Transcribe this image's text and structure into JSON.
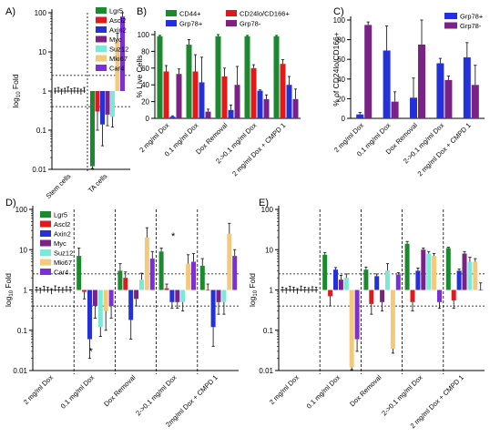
{
  "colors": {
    "Lgr5": "#1b8a2e",
    "Ascl2": "#e0191c",
    "Axin2": "#2430d8",
    "Myc": "#7b2287",
    "Suz12": "#7ce8d6",
    "Mki67": "#f5c97a",
    "Car4": "#7b2fd6",
    "CD44+": "#1b8a2e",
    "Grp78+": "#2430d8",
    "CD24lo/CD166+": "#e0191c",
    "Grp78-": "#7b2287"
  },
  "chart_data": [
    {
      "panel": "A)",
      "type": "bar",
      "scale": "log",
      "ylabel": "log10 Fold",
      "ylim": [
        0.01,
        100
      ],
      "yticks": [
        "0.01",
        "0.1",
        "1",
        "10",
        "100"
      ],
      "categories": [
        "Stem cells",
        "TA cells"
      ],
      "stem_points": [
        1.0,
        1.05,
        0.95,
        1.0,
        1.08,
        0.97,
        1.02,
        1.0,
        0.95,
        1.05
      ],
      "reference_lines": [
        2.5,
        0.4
      ],
      "series": [
        {
          "name": "Lgr5",
          "values": [
            null,
            0.012
          ],
          "err": [
            null,
            0.01
          ]
        },
        {
          "name": "Ascl2",
          "values": [
            null,
            0.3
          ],
          "err": [
            null,
            0.2
          ]
        },
        {
          "name": "Axin2",
          "values": [
            null,
            0.14
          ],
          "err": [
            null,
            0.1
          ]
        },
        {
          "name": "Myc",
          "values": [
            null,
            0.25
          ],
          "err": [
            null,
            0.12
          ]
        },
        {
          "name": "Suz12",
          "values": [
            null,
            0.22
          ],
          "err": [
            null,
            0.1
          ]
        },
        {
          "name": "Mki67",
          "values": [
            null,
            20
          ],
          "err": [
            null,
            10
          ]
        },
        {
          "name": "Car4",
          "values": [
            null,
            80
          ],
          "err": [
            null,
            20
          ]
        }
      ]
    },
    {
      "panel": "B)",
      "type": "bar",
      "ylabel": "% Live Cells",
      "ylim": [
        0,
        100
      ],
      "yticks": [
        "0",
        "20",
        "40",
        "60",
        "80",
        "100"
      ],
      "categories": [
        "2 mg/ml Dox",
        "0.1 mg/ml Dox",
        "Dox Removal",
        "2->0.1 mg/ml Dox",
        "2 mg/ml Dox + CMPD 1"
      ],
      "series": [
        {
          "name": "CD44+",
          "values": [
            98,
            88,
            98,
            98,
            98
          ],
          "err": [
            1,
            6,
            2,
            1,
            1
          ]
        },
        {
          "name": "CD24lo/CD166+",
          "values": [
            56,
            56,
            50,
            60,
            65
          ],
          "err": [
            7,
            20,
            10,
            4,
            5
          ]
        },
        {
          "name": "Grp78+",
          "values": [
            2,
            43,
            10,
            33,
            40
          ],
          "err": [
            1,
            30,
            6,
            1,
            10
          ]
        },
        {
          "name": "Grp78-",
          "values": [
            53,
            8,
            40,
            23,
            23
          ],
          "err": [
            6,
            3,
            22,
            5,
            12
          ]
        }
      ]
    },
    {
      "panel": "C)",
      "type": "bar",
      "ylabel": "% of CD24lo/CD166+",
      "ylim": [
        0,
        100
      ],
      "yticks": [
        "0",
        "20",
        "40",
        "60",
        "80",
        "100"
      ],
      "categories": [
        "2 mg/ml Dox",
        "0.1 mg/ml Dox",
        "Dox Removal",
        "2->0.1 mg/ml Dox",
        "2 mg/ml Dox + CMPD 1"
      ],
      "series": [
        {
          "name": "Grp78+",
          "values": [
            4,
            69,
            21,
            56,
            62
          ],
          "err": [
            2,
            25,
            20,
            5,
            15
          ]
        },
        {
          "name": "Grp78-",
          "values": [
            95,
            17,
            75,
            39,
            34
          ],
          "err": [
            3,
            10,
            25,
            4,
            20
          ]
        }
      ]
    },
    {
      "panel": "D)",
      "type": "bar",
      "scale": "log",
      "ylabel": "log10 Fold",
      "ylim": [
        0.01,
        100
      ],
      "yticks": [
        "0.01",
        "0.1",
        "1",
        "10",
        "100"
      ],
      "categories": [
        "2 mg/ml Dox",
        "0.1 mg/ml Dox",
        "Dox Removal",
        "2->0.1 mg/ml Dox",
        "2mg/ml Dox + CMPD 1"
      ],
      "first_group_points": [
        1.0,
        0.95,
        1.05,
        1.0,
        0.92,
        1.08,
        1.0,
        0.97,
        1.03,
        1.0
      ],
      "reference_lines": [
        2.5,
        0.4
      ],
      "annotations": [
        {
          "text": "*",
          "category": 1
        },
        {
          "text": "*",
          "category": 3
        }
      ],
      "series": [
        {
          "name": "Lgr5",
          "values": [
            null,
            7,
            3,
            9,
            4
          ],
          "err": [
            null,
            4,
            1.5,
            2,
            2
          ]
        },
        {
          "name": "Ascl2",
          "values": [
            null,
            0.9,
            2,
            1.1,
            1
          ],
          "err": [
            null,
            0.3,
            0.8,
            0.3,
            0.4
          ]
        },
        {
          "name": "Axin2",
          "values": [
            null,
            0.06,
            0.18,
            0.5,
            0.12
          ],
          "err": [
            null,
            0.04,
            0.12,
            0.15,
            0.08
          ]
        },
        {
          "name": "Myc",
          "values": [
            null,
            0.4,
            0.6,
            0.5,
            0.5
          ],
          "err": [
            null,
            0.2,
            0.2,
            0.15,
            0.25
          ]
        },
        {
          "name": "Suz12",
          "values": [
            null,
            0.12,
            1.8,
            0.5,
            0.5
          ],
          "err": [
            null,
            0.05,
            0.8,
            0.2,
            0.25
          ]
        },
        {
          "name": "Mki67",
          "values": [
            null,
            0.3,
            20,
            4.5,
            25
          ],
          "err": [
            null,
            0.2,
            15,
            3,
            20
          ]
        },
        {
          "name": "Car4",
          "values": [
            null,
            0.4,
            6,
            5,
            7
          ],
          "err": [
            null,
            0.2,
            3,
            3,
            3
          ]
        }
      ]
    },
    {
      "panel": "E)",
      "type": "bar",
      "scale": "log",
      "ylabel": "log10 Fold",
      "ylim": [
        0.01,
        100
      ],
      "yticks": [
        "0.01",
        "0.1",
        "1",
        "10",
        "100"
      ],
      "categories": [
        "2 mg/ml Dox",
        "0.1 mg/ml Dox",
        "Dox Removal",
        "2->0.1 mg/ml Dox",
        "2 mg/ml Dox + CMPD 1"
      ],
      "first_group_points": [
        1.0,
        0.95,
        1.05,
        1.0,
        0.93,
        1.07,
        1.0,
        0.97,
        1.03,
        1.0
      ],
      "reference_lines": [
        2.5,
        0.4
      ],
      "series": [
        {
          "name": "Lgr5",
          "values": [
            null,
            7.5,
            3.2,
            14,
            11
          ],
          "err": [
            null,
            1,
            0.5,
            2,
            0.5
          ]
        },
        {
          "name": "Ascl2",
          "values": [
            null,
            0.7,
            0.45,
            0.5,
            0.55
          ],
          "err": [
            null,
            0.3,
            0.2,
            0.2,
            0.2
          ]
        },
        {
          "name": "Axin2",
          "values": [
            null,
            3.2,
            2.2,
            3,
            3
          ],
          "err": [
            null,
            0.4,
            0.3,
            0.5,
            0.3
          ]
        },
        {
          "name": "Myc",
          "values": [
            null,
            1.8,
            0.5,
            10,
            8
          ],
          "err": [
            null,
            0.5,
            0.2,
            1,
            1
          ]
        },
        {
          "name": "Suz12",
          "values": [
            null,
            2,
            3,
            8,
            5
          ],
          "err": [
            null,
            0.5,
            1.5,
            1,
            1.5
          ]
        },
        {
          "name": "Mki67",
          "values": [
            null,
            0.012,
            0.035,
            7,
            5
          ],
          "err": [
            null,
            0.004,
            0.008,
            1,
            1
          ]
        },
        {
          "name": "Car4",
          "values": [
            null,
            0.06,
            2.4,
            0.5,
            1
          ],
          "err": [
            null,
            0.03,
            0.3,
            0.15,
            0.5
          ]
        }
      ]
    }
  ]
}
